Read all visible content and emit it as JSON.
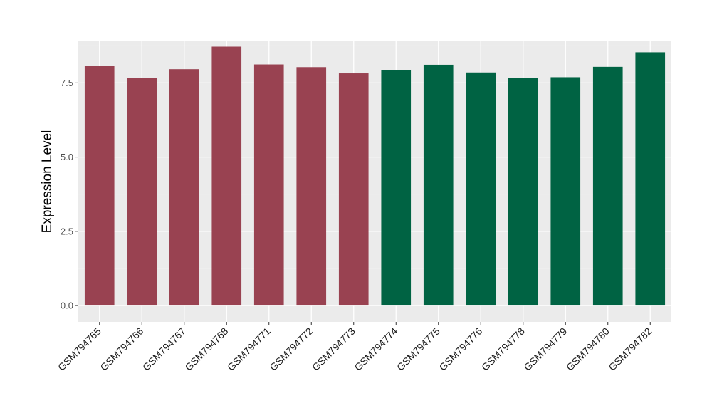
{
  "chart_data": {
    "type": "bar",
    "title": "",
    "xlabel": "",
    "ylabel": "Expression Level",
    "ylim": [
      -0.55,
      8.9
    ],
    "yticks": [
      0.0,
      2.5,
      5.0,
      7.5
    ],
    "ytick_labels": [
      "0.0",
      "2.5",
      "5.0",
      "7.5"
    ],
    "grid": true,
    "legend": "none",
    "categories": [
      "GSM794765",
      "GSM794766",
      "GSM794767",
      "GSM794768",
      "GSM794771",
      "GSM794772",
      "GSM794773",
      "GSM794774",
      "GSM794775",
      "GSM794776",
      "GSM794778",
      "GSM794779",
      "GSM794780",
      "GSM794782"
    ],
    "values": [
      8.08,
      7.67,
      7.96,
      8.72,
      8.12,
      8.03,
      7.82,
      7.94,
      8.11,
      7.85,
      7.67,
      7.69,
      8.04,
      8.53
    ],
    "bar_colors": [
      "#994251",
      "#994251",
      "#994251",
      "#994251",
      "#994251",
      "#994251",
      "#994251",
      "#006343",
      "#006343",
      "#006343",
      "#006343",
      "#006343",
      "#006343",
      "#006343"
    ]
  },
  "colors": {
    "panel_background": "#ebebeb",
    "grid_major": "#ffffff",
    "grid_minor": "#f5f5f5",
    "tick_mark": "#333333"
  }
}
